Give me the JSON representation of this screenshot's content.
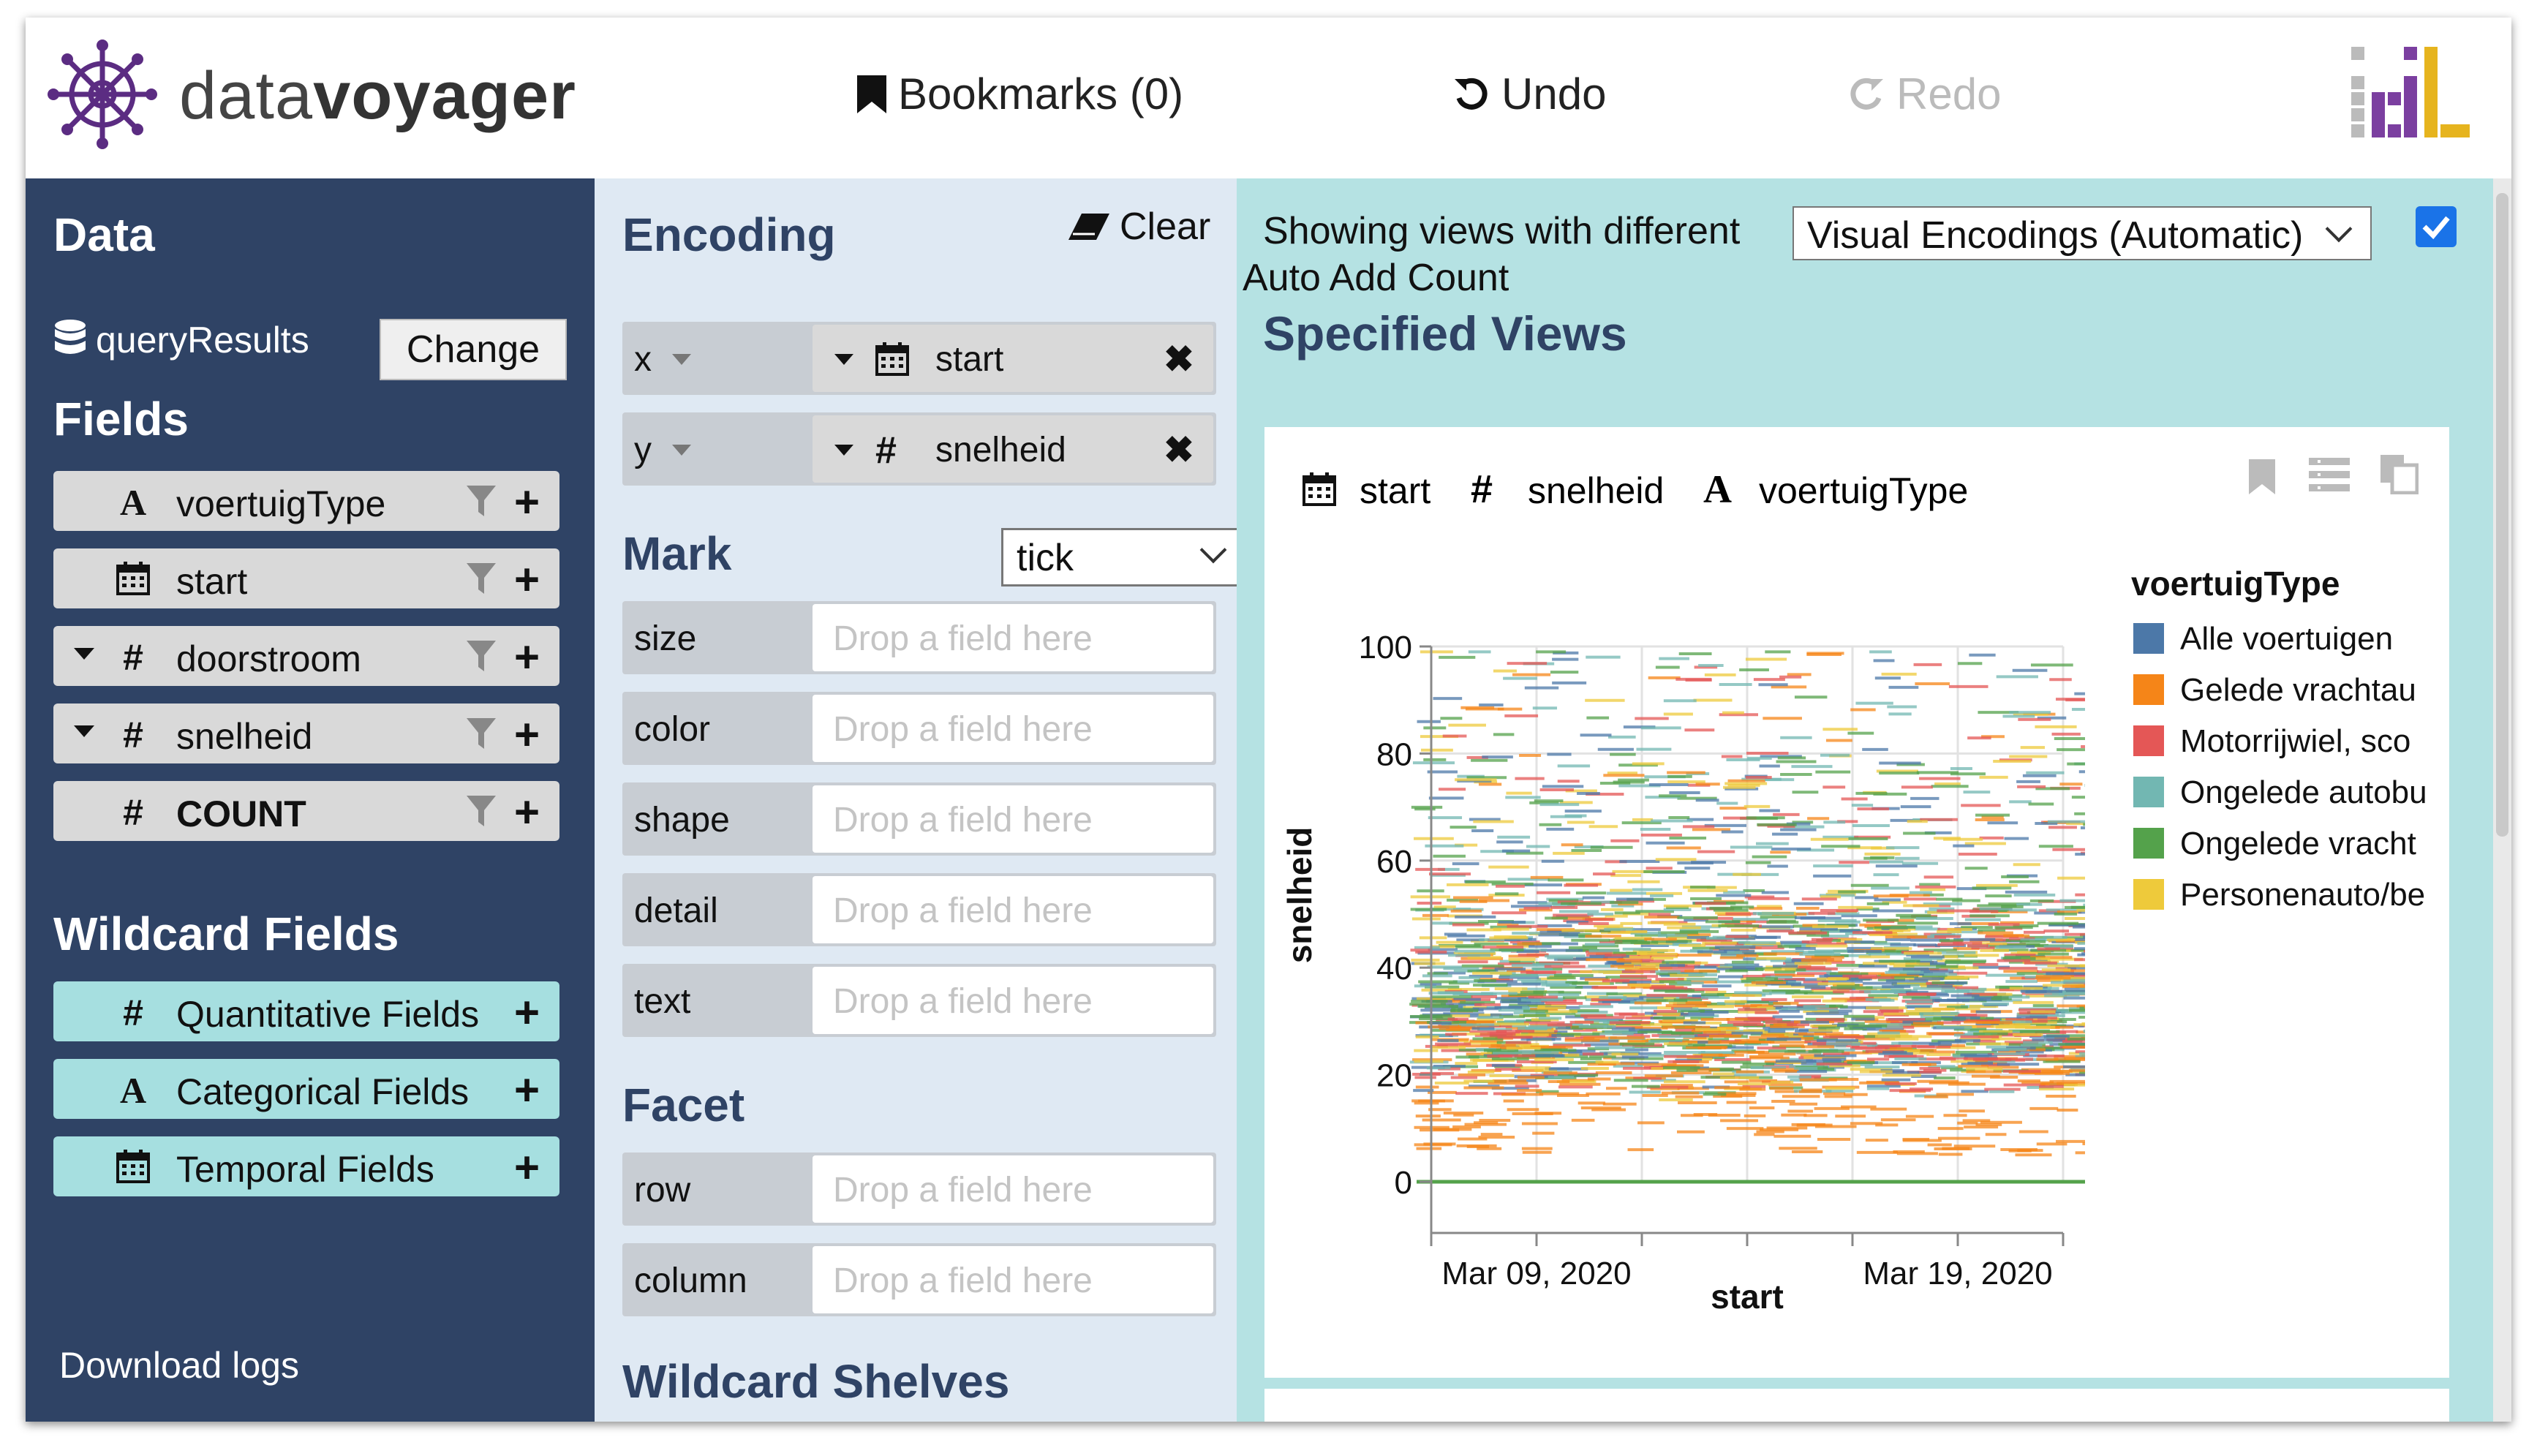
{
  "header": {
    "logo_light": "data",
    "logo_bold": "voyager",
    "bookmarks": "Bookmarks (0)",
    "undo": "Undo",
    "redo": "Redo"
  },
  "data_panel": {
    "title": "Data",
    "dataset": "queryResults",
    "change_label": "Change",
    "fields_title": "Fields",
    "fields": [
      {
        "type_icon": "A",
        "name": "voertuigType"
      },
      {
        "type_icon": "calendar",
        "name": "start"
      },
      {
        "type_icon": "#",
        "name": "doorstroom"
      },
      {
        "type_icon": "#",
        "name": "snelheid"
      },
      {
        "type_icon": "#",
        "name": "COUNT"
      }
    ],
    "wildcard_title": "Wildcard Fields",
    "wildcards": [
      {
        "type_icon": "#",
        "name": "Quantitative Fields"
      },
      {
        "type_icon": "A",
        "name": "Categorical Fields"
      },
      {
        "type_icon": "calendar",
        "name": "Temporal Fields"
      }
    ],
    "download": "Download logs"
  },
  "encoding_panel": {
    "title": "Encoding",
    "clear": "Clear",
    "x_label": "x",
    "x_field": "start",
    "y_label": "y",
    "y_field": "snelheid",
    "mark_title": "Mark",
    "mark_value": "tick",
    "placeholder": "Drop a field here",
    "channels": [
      "size",
      "color",
      "shape",
      "detail",
      "text"
    ],
    "facet_title": "Facet",
    "facets": [
      "row",
      "column"
    ],
    "wildcard_title": "Wildcard Shelves"
  },
  "view_panel": {
    "showing": "Showing views with different",
    "select_value": "Visual Encodings (Automatic)",
    "auto_add": "Auto Add Count",
    "auto_add_checked": true,
    "title": "Specified Views",
    "card_fields": [
      "start",
      "snelheid",
      "voertuigType"
    ]
  },
  "chart_data": {
    "type": "scatter",
    "mark": "tick",
    "title": "",
    "xlabel": "start",
    "ylabel": "snelheid",
    "x_tick_labels": [
      "Mar 09, 2020",
      "Mar 19, 2020"
    ],
    "x_range": [
      "2020-03-05",
      "2020-03-25"
    ],
    "ylim": [
      0,
      100
    ],
    "y_ticks": [
      0,
      20,
      40,
      60,
      80,
      100
    ],
    "grid": true,
    "legend_title": "voertuigType",
    "legend_position": "right",
    "series": [
      {
        "name": "Alle voertuigen",
        "color": "#4c78a8"
      },
      {
        "name": "Gelede vrachtau",
        "color": "#f58518"
      },
      {
        "name": "Motorrijwiel, sco",
        "color": "#e45756"
      },
      {
        "name": "Ongelede autobu",
        "color": "#72b7b2"
      },
      {
        "name": "Ongelede vracht",
        "color": "#54a24b"
      },
      {
        "name": "Personenauto/be",
        "color": "#eeca3b"
      }
    ]
  }
}
